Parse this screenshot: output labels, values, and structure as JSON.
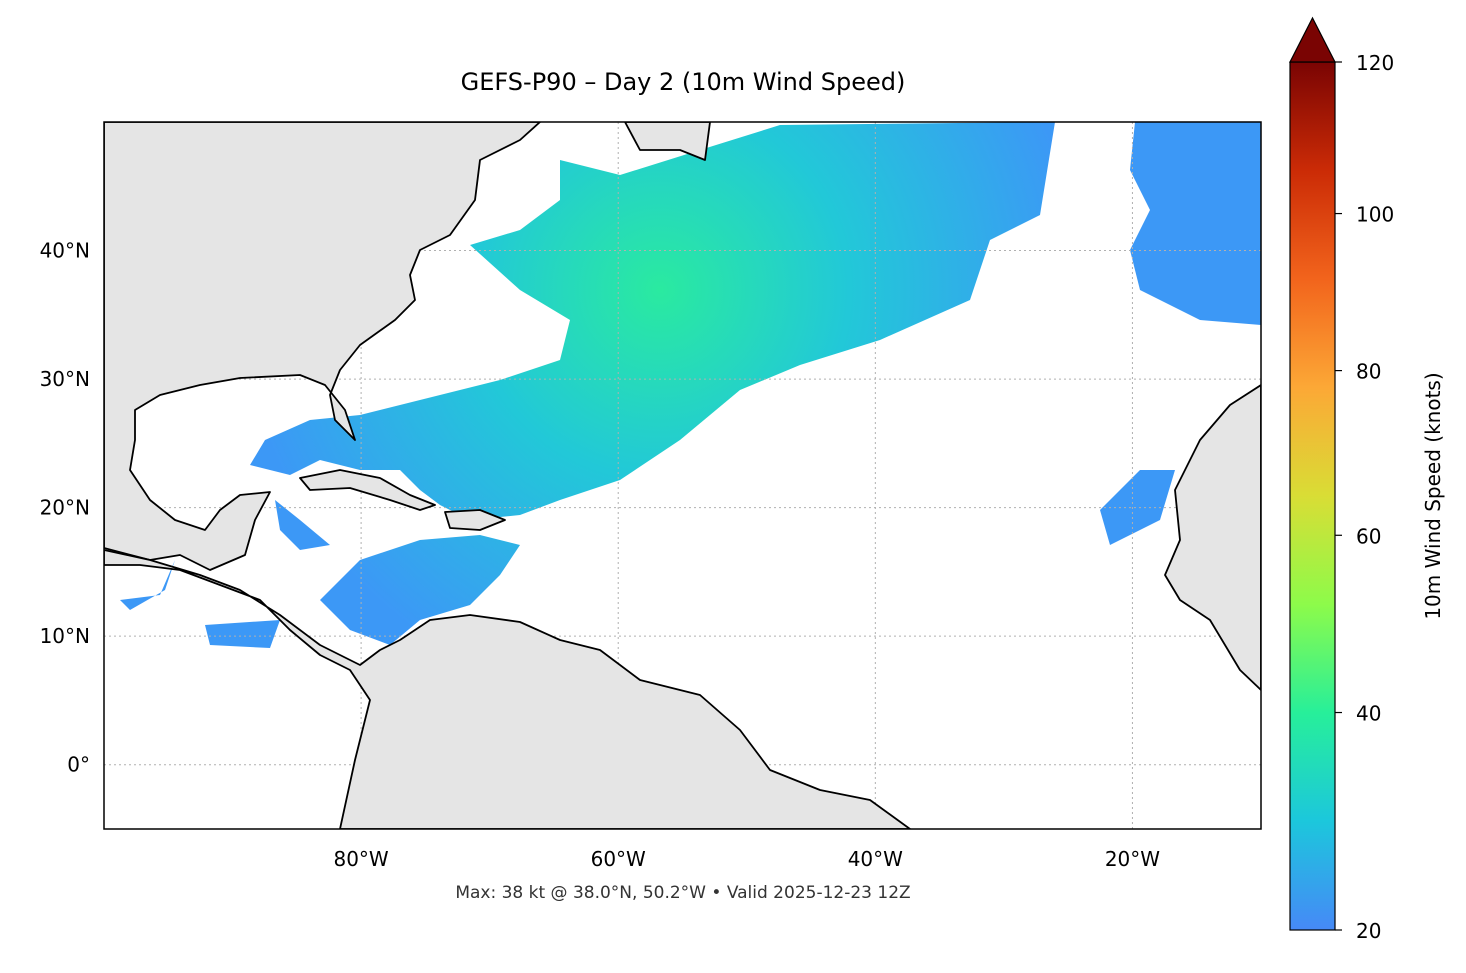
{
  "map": {
    "title": "GEFS-P90 – Day 2 (10m Wind Speed)",
    "footer": "Max: 38 kt @ 38.0°N, 50.2°W • Valid 2025-12-23 12Z",
    "lon_lim": [
      -100,
      -10
    ],
    "lat_lim": [
      -5,
      50
    ],
    "lon_ticks": [
      {
        "value": -80,
        "label": "80°W"
      },
      {
        "value": -60,
        "label": "60°W"
      },
      {
        "value": -40,
        "label": "40°W"
      },
      {
        "value": -20,
        "label": "20°W"
      }
    ],
    "lat_ticks": [
      {
        "value": 0,
        "label": "0°"
      },
      {
        "value": 10,
        "label": "10°N"
      },
      {
        "value": 20,
        "label": "20°N"
      },
      {
        "value": 30,
        "label": "30°N"
      },
      {
        "value": 40,
        "label": "40°N"
      }
    ],
    "grid": true
  },
  "colorbar": {
    "label": "10m Wind Speed (knots)",
    "lim": [
      20,
      120
    ],
    "ticks": [
      20,
      40,
      60,
      80,
      100,
      120
    ],
    "norm": "power",
    "gamma": 0.86,
    "colors": [
      "#4689f7",
      "#1cc7dc",
      "#27ef9a",
      "#8dfb4a",
      "#d9dd35",
      "#fca836",
      "#f2641c",
      "#cb2b06",
      "#7a0403"
    ]
  }
}
